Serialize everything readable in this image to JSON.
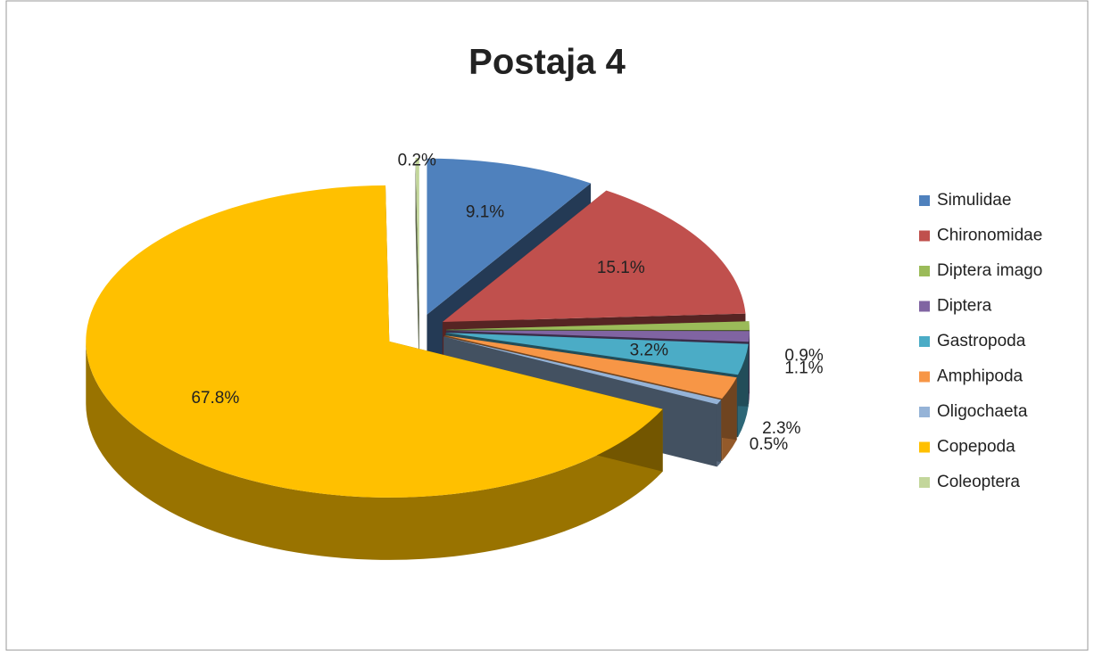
{
  "chart_data": {
    "type": "pie",
    "title": "Postaja 4",
    "categories": [
      "Simulidae",
      "Chironomidae",
      "Diptera imago",
      "Diptera",
      "Gastropoda",
      "Amphipoda",
      "Oligochaeta",
      "Copepoda",
      "Coleoptera"
    ],
    "values": [
      9.1,
      15.1,
      0.9,
      1.1,
      3.2,
      2.3,
      0.5,
      67.8,
      0.2
    ],
    "value_labels": [
      "9.1%",
      "15.1%",
      "0.9%",
      "1.1%",
      "3.2%",
      "2.3%",
      "0.5%",
      "67.8%",
      "0.2%"
    ],
    "colors": [
      "#4f81bd",
      "#c0504d",
      "#9bbb59",
      "#8064a2",
      "#4bacc6",
      "#f79646",
      "#95b3d7",
      "#ffc000",
      "#c3d69b"
    ],
    "legend": "right"
  }
}
